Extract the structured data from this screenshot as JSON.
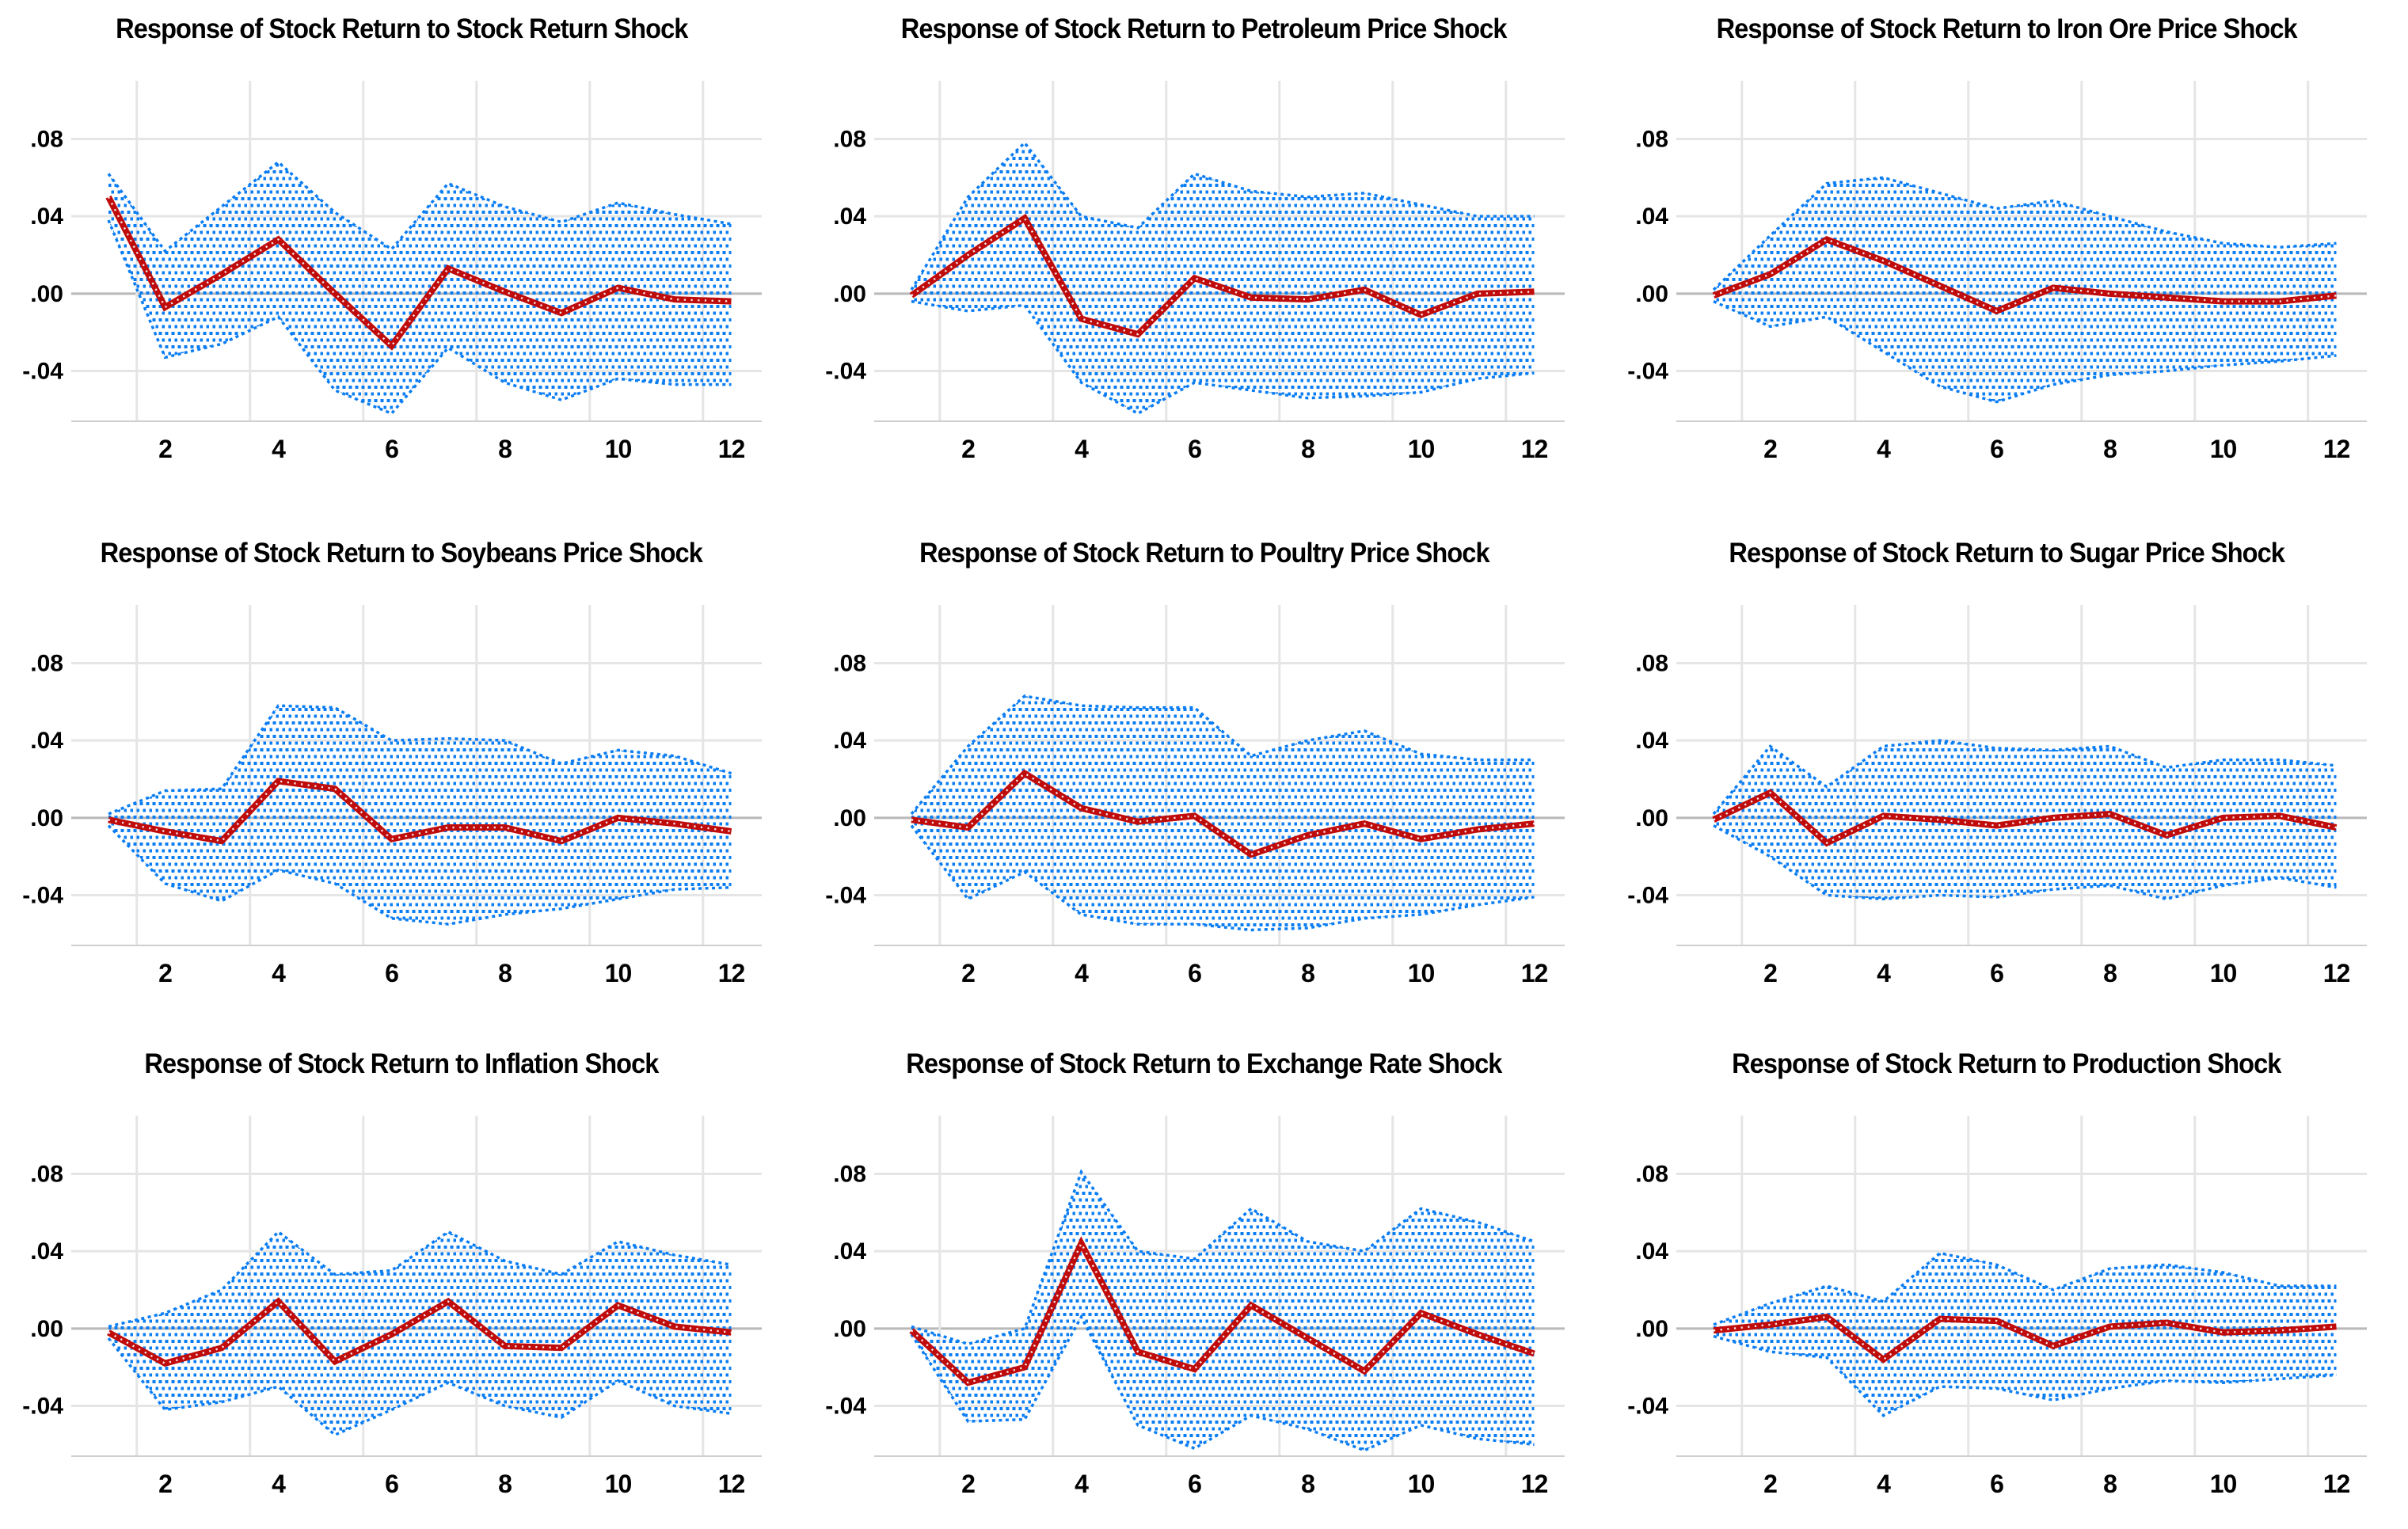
{
  "figure": {
    "kind": "impulse-response-grid",
    "rows": 3,
    "cols": 3,
    "x_range": [
      1,
      12
    ],
    "ylim": [
      -0.066,
      0.106
    ],
    "y_tick_labels": [
      ".08",
      ".04",
      ".00",
      "-.04"
    ],
    "y_tick_values": [
      0.08,
      0.04,
      0.0,
      -0.04
    ],
    "x_tick_labels": [
      "2",
      "4",
      "6",
      "8",
      "10",
      "12"
    ],
    "x_tick_values": [
      2,
      4,
      6,
      8,
      10,
      12
    ],
    "grid": true,
    "legend": "none",
    "colors": {
      "response_line": "#c00b0b",
      "band_dots": "#0b7df2",
      "gridline": "#e5e5e5",
      "zero_line": "#b9b9b9",
      "axis_line": "#cfcfcf",
      "text": "#000000",
      "background": "#ffffff"
    }
  },
  "chart_data": [
    {
      "type": "line",
      "title": "Response of Stock Return to Stock Return Shock",
      "x": [
        1,
        2,
        3,
        4,
        5,
        6,
        7,
        8,
        9,
        10,
        11,
        12
      ],
      "series": [
        {
          "name": "response",
          "values": [
            0.05,
            -0.007,
            0.01,
            0.028,
            0.0,
            -0.027,
            0.013,
            0.001,
            -0.01,
            0.003,
            -0.003,
            -0.004
          ]
        },
        {
          "name": "upper_band",
          "values": [
            0.062,
            0.022,
            0.045,
            0.068,
            0.042,
            0.023,
            0.057,
            0.045,
            0.037,
            0.047,
            0.041,
            0.036
          ]
        },
        {
          "name": "lower_band",
          "values": [
            0.038,
            -0.033,
            -0.026,
            -0.012,
            -0.05,
            -0.062,
            -0.028,
            -0.046,
            -0.055,
            -0.044,
            -0.047,
            -0.047
          ]
        }
      ]
    },
    {
      "type": "line",
      "title": "Response of Stock Return to Petroleum Price Shock",
      "x": [
        1,
        2,
        3,
        4,
        5,
        6,
        7,
        8,
        9,
        10,
        11,
        12
      ],
      "series": [
        {
          "name": "response",
          "values": [
            -0.001,
            0.02,
            0.039,
            -0.013,
            -0.021,
            0.008,
            -0.002,
            -0.003,
            0.002,
            -0.011,
            0.0,
            0.001
          ]
        },
        {
          "name": "upper_band",
          "values": [
            0.002,
            0.05,
            0.078,
            0.04,
            0.034,
            0.062,
            0.053,
            0.05,
            0.052,
            0.046,
            0.04,
            0.04
          ]
        },
        {
          "name": "lower_band",
          "values": [
            -0.004,
            -0.009,
            -0.006,
            -0.046,
            -0.062,
            -0.046,
            -0.05,
            -0.054,
            -0.053,
            -0.051,
            -0.044,
            -0.041
          ]
        }
      ]
    },
    {
      "type": "line",
      "title": "Response of Stock Return to Iron Ore Price Shock",
      "x": [
        1,
        2,
        3,
        4,
        5,
        6,
        7,
        8,
        9,
        10,
        11,
        12
      ],
      "series": [
        {
          "name": "response",
          "values": [
            -0.001,
            0.01,
            0.028,
            0.017,
            0.004,
            -0.009,
            0.003,
            0.0,
            -0.002,
            -0.004,
            -0.004,
            -0.001
          ]
        },
        {
          "name": "upper_band",
          "values": [
            0.002,
            0.03,
            0.057,
            0.06,
            0.052,
            0.044,
            0.048,
            0.04,
            0.032,
            0.026,
            0.024,
            0.026
          ]
        },
        {
          "name": "lower_band",
          "values": [
            -0.004,
            -0.017,
            -0.012,
            -0.03,
            -0.048,
            -0.056,
            -0.047,
            -0.042,
            -0.04,
            -0.037,
            -0.035,
            -0.032
          ]
        }
      ]
    },
    {
      "type": "line",
      "title": "Response of Stock Return to Soybeans Price Shock",
      "x": [
        1,
        2,
        3,
        4,
        5,
        6,
        7,
        8,
        9,
        10,
        11,
        12
      ],
      "series": [
        {
          "name": "response",
          "values": [
            -0.001,
            -0.007,
            -0.012,
            0.019,
            0.015,
            -0.011,
            -0.005,
            -0.005,
            -0.012,
            0.0,
            -0.003,
            -0.007
          ]
        },
        {
          "name": "upper_band",
          "values": [
            0.002,
            0.014,
            0.015,
            0.058,
            0.057,
            0.04,
            0.041,
            0.04,
            0.028,
            0.035,
            0.032,
            0.023
          ]
        },
        {
          "name": "lower_band",
          "values": [
            -0.004,
            -0.034,
            -0.043,
            -0.027,
            -0.034,
            -0.052,
            -0.055,
            -0.05,
            -0.047,
            -0.042,
            -0.037,
            -0.036
          ]
        }
      ]
    },
    {
      "type": "line",
      "title": "Response of Stock Return to Poultry Price Shock",
      "x": [
        1,
        2,
        3,
        4,
        5,
        6,
        7,
        8,
        9,
        10,
        11,
        12
      ],
      "series": [
        {
          "name": "response",
          "values": [
            -0.001,
            -0.005,
            0.023,
            0.005,
            -0.002,
            0.001,
            -0.019,
            -0.009,
            -0.003,
            -0.011,
            -0.006,
            -0.003
          ]
        },
        {
          "name": "upper_band",
          "values": [
            0.002,
            0.037,
            0.063,
            0.058,
            0.057,
            0.057,
            0.032,
            0.04,
            0.045,
            0.033,
            0.03,
            0.03
          ]
        },
        {
          "name": "lower_band",
          "values": [
            -0.004,
            -0.042,
            -0.028,
            -0.05,
            -0.055,
            -0.055,
            -0.058,
            -0.057,
            -0.052,
            -0.05,
            -0.045,
            -0.041
          ]
        }
      ]
    },
    {
      "type": "line",
      "title": "Response of Stock Return to Sugar Price Shock",
      "x": [
        1,
        2,
        3,
        4,
        5,
        6,
        7,
        8,
        9,
        10,
        11,
        12
      ],
      "series": [
        {
          "name": "response",
          "values": [
            -0.001,
            0.013,
            -0.013,
            0.001,
            -0.001,
            -0.004,
            0.0,
            0.002,
            -0.009,
            0.0,
            0.001,
            -0.005
          ]
        },
        {
          "name": "upper_band",
          "values": [
            0.002,
            0.037,
            0.016,
            0.037,
            0.04,
            0.036,
            0.035,
            0.037,
            0.026,
            0.03,
            0.03,
            0.027
          ]
        },
        {
          "name": "lower_band",
          "values": [
            -0.004,
            -0.02,
            -0.04,
            -0.042,
            -0.04,
            -0.041,
            -0.037,
            -0.035,
            -0.042,
            -0.035,
            -0.031,
            -0.036
          ]
        }
      ]
    },
    {
      "type": "line",
      "title": "Response of Stock Return to Inflation Shock",
      "x": [
        1,
        2,
        3,
        4,
        5,
        6,
        7,
        8,
        9,
        10,
        11,
        12
      ],
      "series": [
        {
          "name": "response",
          "values": [
            -0.002,
            -0.018,
            -0.01,
            0.014,
            -0.017,
            -0.003,
            0.014,
            -0.009,
            -0.01,
            0.012,
            0.001,
            -0.002
          ]
        },
        {
          "name": "upper_band",
          "values": [
            0.001,
            0.008,
            0.02,
            0.05,
            0.028,
            0.03,
            0.05,
            0.035,
            0.028,
            0.045,
            0.038,
            0.033
          ]
        },
        {
          "name": "lower_band",
          "values": [
            -0.005,
            -0.042,
            -0.038,
            -0.03,
            -0.055,
            -0.042,
            -0.028,
            -0.04,
            -0.046,
            -0.027,
            -0.04,
            -0.044
          ]
        }
      ]
    },
    {
      "type": "line",
      "title": "Response of Stock Return to Exchange Rate Shock",
      "x": [
        1,
        2,
        3,
        4,
        5,
        6,
        7,
        8,
        9,
        10,
        11,
        12
      ],
      "series": [
        {
          "name": "response",
          "values": [
            -0.001,
            -0.028,
            -0.02,
            0.044,
            -0.012,
            -0.021,
            0.012,
            -0.005,
            -0.022,
            0.008,
            -0.003,
            -0.013
          ]
        },
        {
          "name": "upper_band",
          "values": [
            0.001,
            -0.008,
            0.0,
            0.081,
            0.04,
            0.036,
            0.062,
            0.045,
            0.04,
            0.062,
            0.055,
            0.045
          ]
        },
        {
          "name": "lower_band",
          "values": [
            -0.003,
            -0.048,
            -0.047,
            0.006,
            -0.05,
            -0.062,
            -0.045,
            -0.052,
            -0.063,
            -0.05,
            -0.057,
            -0.06
          ]
        }
      ]
    },
    {
      "type": "line",
      "title": "Response of Stock Return to Production Shock",
      "x": [
        1,
        2,
        3,
        4,
        5,
        6,
        7,
        8,
        9,
        10,
        11,
        12
      ],
      "series": [
        {
          "name": "response",
          "values": [
            -0.001,
            0.002,
            0.006,
            -0.016,
            0.005,
            0.004,
            -0.009,
            0.001,
            0.003,
            -0.002,
            -0.001,
            0.001
          ]
        },
        {
          "name": "upper_band",
          "values": [
            0.002,
            0.013,
            0.022,
            0.014,
            0.039,
            0.033,
            0.02,
            0.031,
            0.033,
            0.029,
            0.022,
            0.022
          ]
        },
        {
          "name": "lower_band",
          "values": [
            -0.004,
            -0.012,
            -0.015,
            -0.045,
            -0.03,
            -0.031,
            -0.037,
            -0.031,
            -0.027,
            -0.028,
            -0.026,
            -0.024
          ]
        }
      ]
    }
  ]
}
